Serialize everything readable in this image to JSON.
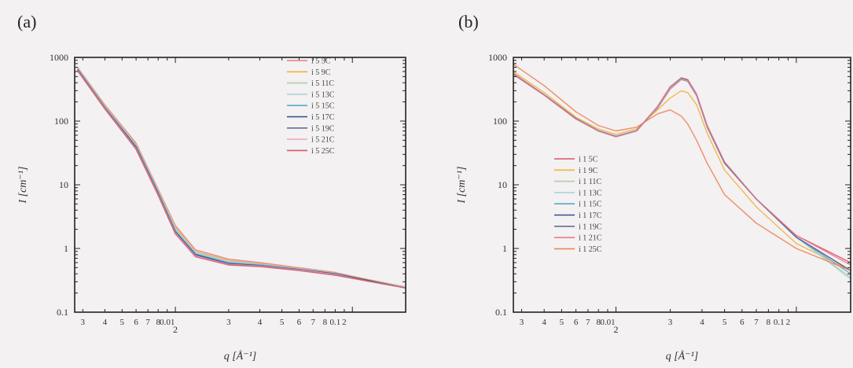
{
  "figure": {
    "panels": [
      {
        "label": "(a)"
      },
      {
        "label": "(b)"
      }
    ]
  },
  "chart_data": [
    {
      "type": "line",
      "panel": "(a)",
      "xlabel": "q [Å⁻¹]",
      "ylabel": "I [cm⁻¹]",
      "xscale": "log",
      "yscale": "log",
      "xlim": [
        0.0027,
        0.2
      ],
      "ylim": [
        0.1,
        1000
      ],
      "x_tick_labels": [
        "3",
        "4",
        "5",
        "6",
        "7",
        "8",
        "0.01",
        "2",
        "3",
        "4",
        "5",
        "6",
        "7",
        "8",
        "0.1",
        "2"
      ],
      "y_tick_labels": [
        "0.1",
        "1",
        "10",
        "100",
        "1000"
      ],
      "legend_position": "top-right",
      "series": [
        {
          "name": "i 5 5C",
          "color": "#e87a8c",
          "x": [
            0.0028,
            0.004,
            0.006,
            0.008,
            0.01,
            0.013,
            0.02,
            0.03,
            0.05,
            0.08,
            0.12,
            0.2
          ],
          "y": [
            700,
            180,
            45,
            8.5,
            2.3,
            0.95,
            0.68,
            0.6,
            0.5,
            0.42,
            0.33,
            0.25
          ]
        },
        {
          "name": "i 5 9C",
          "color": "#f2b33c",
          "x": [
            0.0028,
            0.004,
            0.006,
            0.008,
            0.01,
            0.013,
            0.02,
            0.03,
            0.05,
            0.08,
            0.12,
            0.2
          ],
          "y": [
            690,
            175,
            43,
            8.2,
            2.2,
            0.9,
            0.65,
            0.58,
            0.49,
            0.41,
            0.33,
            0.25
          ]
        },
        {
          "name": "i 5 11C",
          "color": "#b8c9a8",
          "x": [
            0.0028,
            0.004,
            0.006,
            0.008,
            0.01,
            0.013,
            0.02,
            0.03,
            0.05,
            0.08,
            0.12,
            0.2
          ],
          "y": [
            680,
            170,
            42,
            8.0,
            2.1,
            0.88,
            0.63,
            0.57,
            0.48,
            0.41,
            0.32,
            0.25
          ]
        },
        {
          "name": "i 5 13C",
          "color": "#a9d3d8",
          "x": [
            0.0028,
            0.004,
            0.006,
            0.008,
            0.01,
            0.013,
            0.02,
            0.03,
            0.05,
            0.08,
            0.12,
            0.2
          ],
          "y": [
            670,
            168,
            41,
            7.8,
            2.0,
            0.85,
            0.62,
            0.56,
            0.48,
            0.4,
            0.32,
            0.25
          ]
        },
        {
          "name": "i 5 15C",
          "color": "#59a8cf",
          "x": [
            0.0028,
            0.004,
            0.006,
            0.008,
            0.01,
            0.013,
            0.02,
            0.03,
            0.05,
            0.08,
            0.12,
            0.2
          ],
          "y": [
            660,
            165,
            40,
            7.6,
            1.9,
            0.82,
            0.6,
            0.55,
            0.47,
            0.4,
            0.32,
            0.24
          ]
        },
        {
          "name": "i 5 17C",
          "color": "#2f4d8a",
          "x": [
            0.0028,
            0.004,
            0.006,
            0.008,
            0.01,
            0.013,
            0.02,
            0.03,
            0.05,
            0.08,
            0.12,
            0.2
          ],
          "y": [
            650,
            162,
            39,
            7.4,
            1.85,
            0.8,
            0.58,
            0.54,
            0.47,
            0.4,
            0.32,
            0.24
          ]
        },
        {
          "name": "i 5 19C",
          "color": "#6c6a9a",
          "x": [
            0.0028,
            0.004,
            0.006,
            0.008,
            0.01,
            0.013,
            0.02,
            0.03,
            0.05,
            0.08,
            0.12,
            0.2
          ],
          "y": [
            640,
            160,
            38,
            7.2,
            1.8,
            0.78,
            0.57,
            0.53,
            0.46,
            0.39,
            0.31,
            0.24
          ]
        },
        {
          "name": "i 5 21C",
          "color": "#f0a8c4",
          "x": [
            0.0028,
            0.004,
            0.006,
            0.008,
            0.01,
            0.013,
            0.02,
            0.03,
            0.05,
            0.08,
            0.12,
            0.2
          ],
          "y": [
            630,
            158,
            37,
            7.0,
            1.75,
            0.76,
            0.56,
            0.53,
            0.46,
            0.39,
            0.31,
            0.24
          ]
        },
        {
          "name": "i 5 25C",
          "color": "#d8556a",
          "x": [
            0.0028,
            0.004,
            0.006,
            0.008,
            0.01,
            0.013,
            0.02,
            0.03,
            0.05,
            0.08,
            0.12,
            0.2
          ],
          "y": [
            620,
            155,
            36,
            6.8,
            1.7,
            0.74,
            0.55,
            0.52,
            0.45,
            0.38,
            0.31,
            0.24
          ]
        }
      ]
    },
    {
      "type": "line",
      "panel": "(b)",
      "xlabel": "q [Å⁻¹]",
      "ylabel": "I [cm⁻¹]",
      "xscale": "log",
      "yscale": "log",
      "xlim": [
        0.0027,
        0.2
      ],
      "ylim": [
        0.1,
        1000
      ],
      "x_tick_labels": [
        "3",
        "4",
        "5",
        "6",
        "7",
        "8",
        "0.01",
        "2",
        "3",
        "4",
        "5",
        "6",
        "7",
        "8",
        "0.1",
        "2"
      ],
      "y_tick_labels": [
        "0.1",
        "1",
        "10",
        "100",
        "1000"
      ],
      "legend_position": "bottom-left",
      "series": [
        {
          "name": "i 1 5C",
          "color": "#d8556a",
          "x": [
            0.0027,
            0.004,
            0.006,
            0.008,
            0.01,
            0.013,
            0.017,
            0.02,
            0.023,
            0.025,
            0.028,
            0.032,
            0.04,
            0.06,
            0.1,
            0.2
          ],
          "y": [
            560,
            260,
            110,
            70,
            58,
            70,
            160,
            320,
            450,
            420,
            250,
            80,
            22,
            6,
            1.6,
            0.6
          ]
        },
        {
          "name": "i 1 9C",
          "color": "#f2b33c",
          "x": [
            0.0027,
            0.004,
            0.006,
            0.008,
            0.01,
            0.013,
            0.017,
            0.02,
            0.023,
            0.025,
            0.028,
            0.032,
            0.04,
            0.06,
            0.1,
            0.2
          ],
          "y": [
            600,
            280,
            115,
            75,
            62,
            75,
            150,
            230,
            300,
            280,
            180,
            65,
            17,
            4.5,
            1.2,
            0.45
          ]
        },
        {
          "name": "i 1 11C",
          "color": "#b8c9a8",
          "x": [
            0.0027,
            0.004,
            0.006,
            0.008,
            0.01,
            0.013,
            0.017,
            0.02,
            0.023,
            0.025,
            0.028,
            0.032,
            0.04,
            0.06,
            0.1,
            0.2
          ],
          "y": [
            540,
            255,
            108,
            70,
            58,
            70,
            165,
            330,
            460,
            430,
            255,
            82,
            22,
            6,
            1.5,
            0.35
          ]
        },
        {
          "name": "i 1 13C",
          "color": "#a9d3d8",
          "x": [
            0.0027,
            0.004,
            0.006,
            0.008,
            0.01,
            0.013,
            0.017,
            0.02,
            0.023,
            0.025,
            0.028,
            0.032,
            0.04,
            0.06,
            0.1,
            0.2
          ],
          "y": [
            545,
            258,
            109,
            70,
            58,
            70,
            165,
            335,
            465,
            435,
            258,
            83,
            22,
            6,
            1.5,
            0.33
          ]
        },
        {
          "name": "i 1 15C",
          "color": "#59a8cf",
          "x": [
            0.0027,
            0.004,
            0.006,
            0.008,
            0.01,
            0.013,
            0.017,
            0.02,
            0.023,
            0.025,
            0.028,
            0.032,
            0.04,
            0.06,
            0.1,
            0.2
          ],
          "y": [
            550,
            258,
            110,
            71,
            58,
            71,
            168,
            340,
            470,
            440,
            260,
            84,
            22,
            6,
            1.5,
            0.4
          ]
        },
        {
          "name": "i 1 17C",
          "color": "#2f4d8a",
          "x": [
            0.0027,
            0.004,
            0.006,
            0.008,
            0.01,
            0.013,
            0.017,
            0.02,
            0.023,
            0.025,
            0.028,
            0.032,
            0.04,
            0.06,
            0.1,
            0.2
          ],
          "y": [
            548,
            257,
            109,
            70,
            57,
            70,
            168,
            345,
            475,
            445,
            262,
            85,
            22,
            6,
            1.5,
            0.45
          ]
        },
        {
          "name": "i 1 19C",
          "color": "#6c6a9a",
          "x": [
            0.0027,
            0.004,
            0.006,
            0.008,
            0.01,
            0.013,
            0.017,
            0.02,
            0.023,
            0.025,
            0.028,
            0.032,
            0.04,
            0.06,
            0.1,
            0.2
          ],
          "y": [
            545,
            256,
            108,
            70,
            57,
            70,
            168,
            345,
            478,
            448,
            263,
            85,
            22,
            6,
            1.5,
            0.45
          ]
        },
        {
          "name": "i 1 21C",
          "color": "#e87a8c",
          "x": [
            0.0027,
            0.004,
            0.006,
            0.008,
            0.01,
            0.013,
            0.017,
            0.02,
            0.023,
            0.025,
            0.028,
            0.032,
            0.04,
            0.06,
            0.1,
            0.2
          ],
          "y": [
            542,
            255,
            108,
            70,
            57,
            70,
            168,
            345,
            480,
            450,
            265,
            86,
            23,
            6,
            1.6,
            0.55
          ]
        },
        {
          "name": "i 1 25C",
          "color": "#f0825a",
          "x": [
            0.0027,
            0.004,
            0.006,
            0.008,
            0.01,
            0.013,
            0.017,
            0.02,
            0.023,
            0.025,
            0.028,
            0.032,
            0.04,
            0.06,
            0.1,
            0.2
          ],
          "y": [
            780,
            360,
            140,
            85,
            70,
            80,
            130,
            150,
            120,
            90,
            50,
            22,
            7,
            2.5,
            1.0,
            0.45
          ]
        }
      ]
    }
  ]
}
